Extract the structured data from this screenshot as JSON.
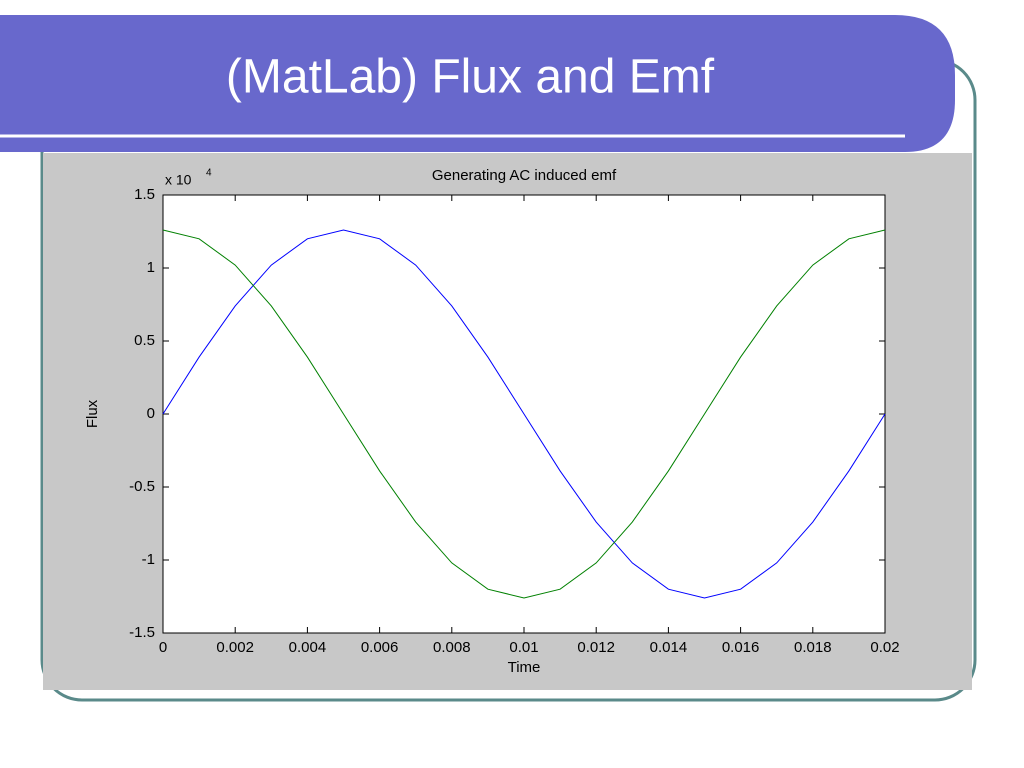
{
  "slide_title": "(MatLab) Flux and Emf",
  "chart_data": {
    "type": "line",
    "title": "Generating AC induced emf",
    "x_label": "Time",
    "y_label": "Flux",
    "y_multiplier": "x 10",
    "y_exponent": "4",
    "x": [
      0,
      0.001,
      0.002,
      0.003,
      0.004,
      0.005,
      0.006,
      0.007,
      0.008,
      0.009,
      0.01,
      0.011,
      0.012,
      0.013,
      0.014,
      0.015,
      0.016,
      0.017,
      0.018,
      0.019,
      0.02
    ],
    "series": [
      {
        "color": "#0000ff",
        "values": [
          0,
          0.39,
          0.74,
          1.02,
          1.2,
          1.26,
          1.2,
          1.02,
          0.74,
          0.39,
          0,
          -0.39,
          -0.74,
          -1.02,
          -1.2,
          -1.26,
          -1.2,
          -1.02,
          -0.74,
          -0.39,
          0
        ]
      },
      {
        "color": "#008000",
        "values": [
          1.26,
          1.2,
          1.02,
          0.74,
          0.39,
          0,
          -0.39,
          -0.74,
          -1.02,
          -1.2,
          -1.26,
          -1.2,
          -1.02,
          -0.74,
          -0.39,
          0,
          0.39,
          0.74,
          1.02,
          1.2,
          1.26
        ]
      }
    ],
    "xlim": [
      0,
      0.02
    ],
    "xticks": [
      0,
      0.002,
      0.004,
      0.006,
      0.008,
      0.01,
      0.012,
      0.014,
      0.016,
      0.018,
      0.02
    ],
    "ylim": [
      -1.5,
      1.5
    ],
    "yticks": [
      -1.5,
      -1,
      -0.5,
      0,
      0.5,
      1,
      1.5
    ],
    "grid": false
  }
}
